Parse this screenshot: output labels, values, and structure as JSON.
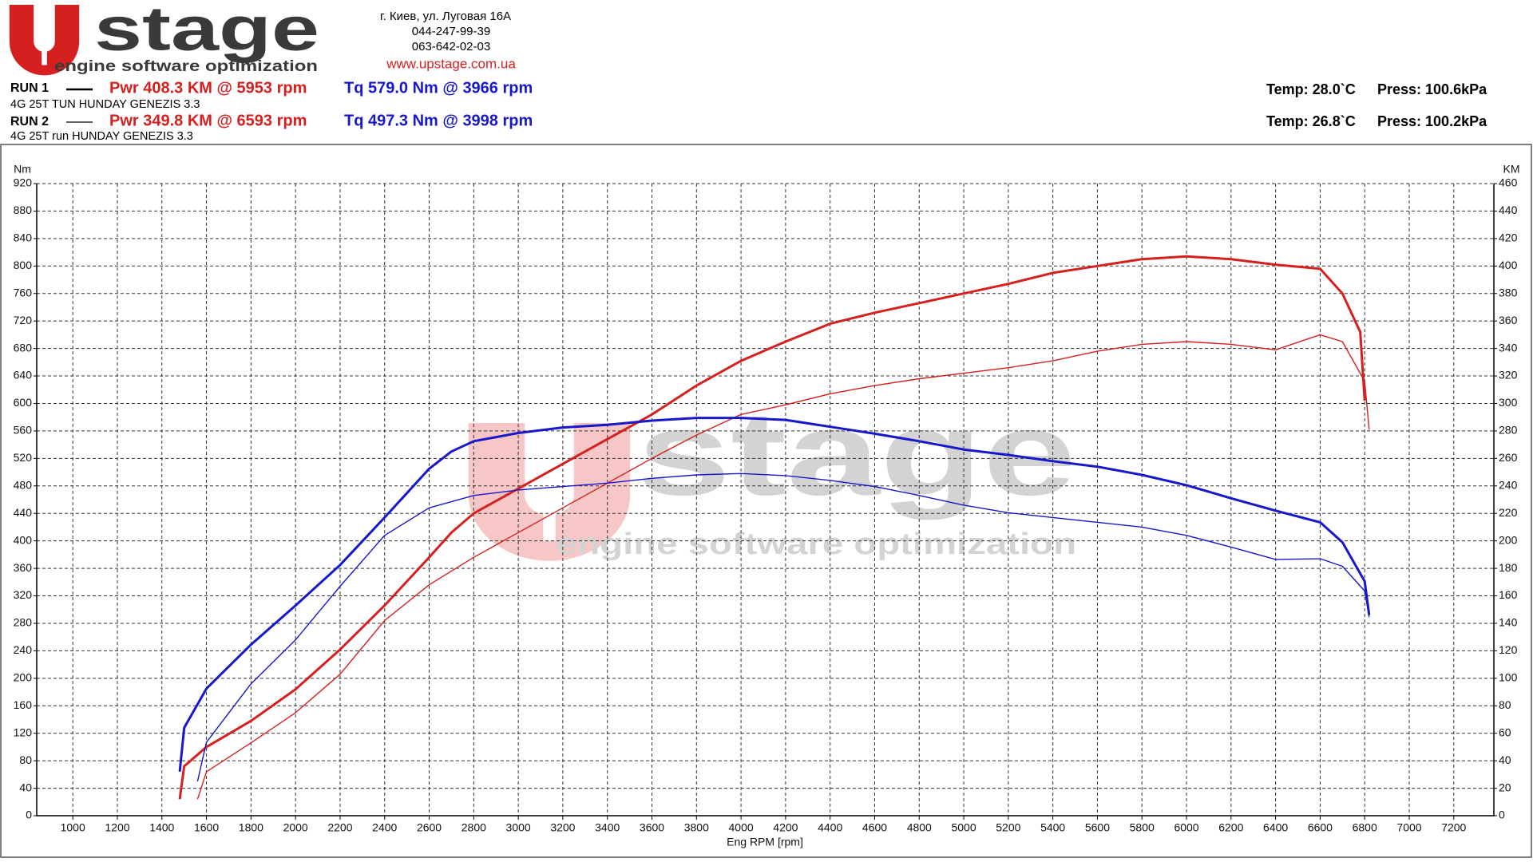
{
  "header": {
    "logo_word": "stage",
    "logo_tagline": "engine software optimization",
    "address": [
      "г. Киев, ул. Луговая 16А",
      "044-247-99-39",
      "063-642-02-03"
    ],
    "website": "www.upstage.com.ua"
  },
  "runs": [
    {
      "label": "RUN 1",
      "description": "4G 25T TUN HUNDAY GENEZIS 3.3",
      "power": "Pwr  408.3 KM @ 5953 rpm",
      "torque": "Tq 579.0 Nm @ 3966 rpm",
      "temp": "Temp: 28.0`C",
      "press": "Press: 100.6kPa"
    },
    {
      "label": "RUN 2",
      "description": "4G 25T run HUNDAY GENEZIS 3.3",
      "power": "Pwr  349.8 KM @ 6593 rpm",
      "torque": "Tq 497.3 Nm @ 3998 rpm",
      "temp": "Temp: 26.8`C",
      "press": "Press: 100.2kPa"
    }
  ],
  "chart_data": {
    "type": "line",
    "x_label": "Eng RPM [rpm]",
    "y_label": "Nm",
    "y2_label": "KM",
    "xlim": [
      838,
      7380
    ],
    "ylim": [
      0,
      920
    ],
    "y2lim": [
      0,
      460
    ],
    "xticks": [
      1000,
      1200,
      1400,
      1600,
      1800,
      2000,
      2200,
      2400,
      2600,
      2800,
      3000,
      3200,
      3400,
      3600,
      3800,
      4000,
      4200,
      4400,
      4600,
      4800,
      5000,
      5200,
      5400,
      5600,
      5800,
      6000,
      6200,
      6400,
      6600,
      6800,
      7000,
      7200
    ],
    "yticks": [
      0,
      40,
      80,
      120,
      160,
      200,
      240,
      280,
      320,
      360,
      400,
      440,
      480,
      520,
      560,
      600,
      640,
      680,
      720,
      760,
      800,
      840,
      880,
      920
    ],
    "y2ticks": [
      0,
      20,
      40,
      60,
      80,
      100,
      120,
      140,
      160,
      180,
      200,
      220,
      240,
      260,
      280,
      300,
      320,
      340,
      360,
      380,
      400,
      420,
      440,
      460
    ],
    "grid": true,
    "series": [
      {
        "color": "#d61f1f",
        "axis": "y2",
        "x": [
          1480,
          1500,
          1600,
          1800,
          2000,
          2200,
          2400,
          2600,
          2700,
          2800,
          3000,
          3200,
          3400,
          3600,
          3800,
          4000,
          4200,
          4400,
          4600,
          4800,
          5000,
          5200,
          5400,
          5600,
          5800,
          6000,
          6200,
          6400,
          6600,
          6700,
          6780,
          6800
        ],
        "values": [
          12,
          36,
          50,
          69,
          92,
          121,
          153,
          188,
          206,
          220,
          238,
          256,
          274,
          292,
          313,
          331,
          345,
          358,
          366,
          373,
          380,
          387,
          395,
          400,
          405,
          407,
          405,
          401,
          398,
          380,
          352,
          302
        ]
      },
      {
        "color": "#d61f1f",
        "axis": "y2",
        "x": [
          1560,
          1600,
          1800,
          2000,
          2200,
          2400,
          2600,
          2800,
          3000,
          3200,
          3400,
          3600,
          3800,
          4000,
          4200,
          4400,
          4600,
          4800,
          5000,
          5200,
          5400,
          5600,
          5800,
          6000,
          6200,
          6400,
          6600,
          6700,
          6800,
          6820
        ],
        "values": [
          12,
          32,
          53,
          75,
          103,
          142,
          168,
          188,
          206,
          224,
          242,
          260,
          277,
          292,
          299,
          307,
          313,
          318,
          322,
          326,
          331,
          338,
          343,
          345,
          343,
          339,
          350,
          345,
          316,
          281
        ]
      },
      {
        "color": "#1717cc",
        "x": [
          1480,
          1500,
          1600,
          1800,
          2000,
          2200,
          2400,
          2600,
          2700,
          2800,
          3000,
          3200,
          3400,
          3600,
          3800,
          4000,
          4200,
          4400,
          4600,
          4800,
          5000,
          5200,
          5400,
          5600,
          5800,
          6000,
          6200,
          6400,
          6600,
          6700,
          6800,
          6820
        ],
        "values": [
          64,
          128,
          185,
          249,
          306,
          365,
          434,
          505,
          530,
          545,
          557,
          565,
          569,
          575,
          579,
          579,
          576,
          566,
          556,
          545,
          533,
          525,
          516,
          508,
          496,
          481,
          462,
          444,
          427,
          398,
          341,
          292
        ]
      },
      {
        "color": "#1717cc",
        "x": [
          1560,
          1600,
          1800,
          2000,
          2200,
          2400,
          2600,
          2800,
          3000,
          3200,
          3400,
          3600,
          3800,
          4000,
          4200,
          4400,
          4600,
          4800,
          5000,
          5200,
          5400,
          5600,
          5800,
          6000,
          6200,
          6400,
          6600,
          6700,
          6800,
          6820
        ],
        "values": [
          50,
          107,
          192,
          256,
          334,
          408,
          448,
          466,
          474,
          479,
          484,
          491,
          496,
          498,
          495,
          488,
          479,
          466,
          452,
          441,
          434,
          427,
          420,
          408,
          391,
          373,
          374,
          363,
          327,
          289
        ]
      }
    ]
  }
}
